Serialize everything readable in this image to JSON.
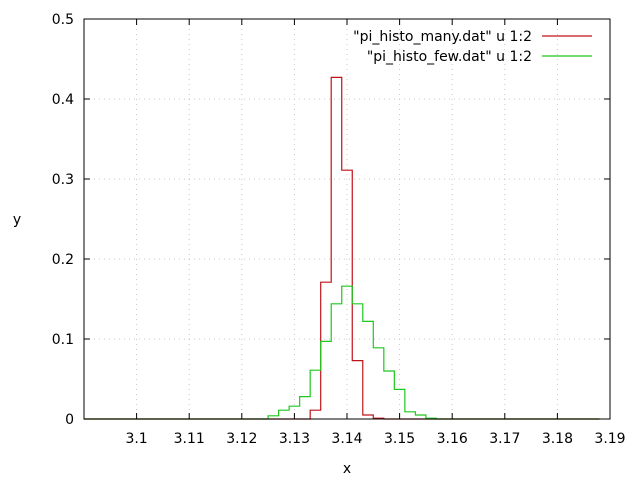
{
  "chart_data": {
    "type": "line",
    "step": true,
    "title": "",
    "xlabel": "x",
    "ylabel": "y",
    "xlim": [
      3.09,
      3.19
    ],
    "ylim": [
      0,
      0.5
    ],
    "x_ticks": [
      3.1,
      3.11,
      3.12,
      3.13,
      3.14,
      3.15,
      3.16,
      3.17,
      3.18,
      3.19
    ],
    "x_tick_labels": [
      "3.1",
      "3.11",
      "3.12",
      "3.13",
      "3.14",
      "3.15",
      "3.16",
      "3.17",
      "3.18",
      "3.19"
    ],
    "y_ticks": [
      0,
      0.1,
      0.2,
      0.3,
      0.4,
      0.5
    ],
    "y_tick_labels": [
      "0",
      "0.1",
      "0.2",
      "0.3",
      "0.4",
      "0.5"
    ],
    "grid": true,
    "legend_position": "top-right",
    "series": [
      {
        "name": "\"pi_histo_many.dat\" u 1:2",
        "color": "#c0141a",
        "x": [
          3.09,
          3.125,
          3.127,
          3.129,
          3.131,
          3.133,
          3.135,
          3.137,
          3.139,
          3.141,
          3.143,
          3.145,
          3.147,
          3.149,
          3.151,
          3.153,
          3.155,
          3.157,
          3.188
        ],
        "y": [
          0,
          0,
          0,
          0,
          0,
          0.011,
          0.171,
          0.427,
          0.311,
          0.073,
          0.005,
          0.001,
          0,
          0,
          0,
          0,
          0,
          0,
          0
        ]
      },
      {
        "name": "\"pi_histo_few.dat\" u 1:2",
        "color": "#1ec81e",
        "x": [
          3.09,
          3.125,
          3.127,
          3.129,
          3.131,
          3.133,
          3.135,
          3.137,
          3.139,
          3.141,
          3.143,
          3.145,
          3.147,
          3.149,
          3.151,
          3.153,
          3.155,
          3.157,
          3.188
        ],
        "y": [
          0,
          0.004,
          0.011,
          0.016,
          0.028,
          0.061,
          0.097,
          0.144,
          0.166,
          0.144,
          0.122,
          0.089,
          0.06,
          0.037,
          0.009,
          0.005,
          0.001,
          0,
          0
        ]
      }
    ]
  }
}
